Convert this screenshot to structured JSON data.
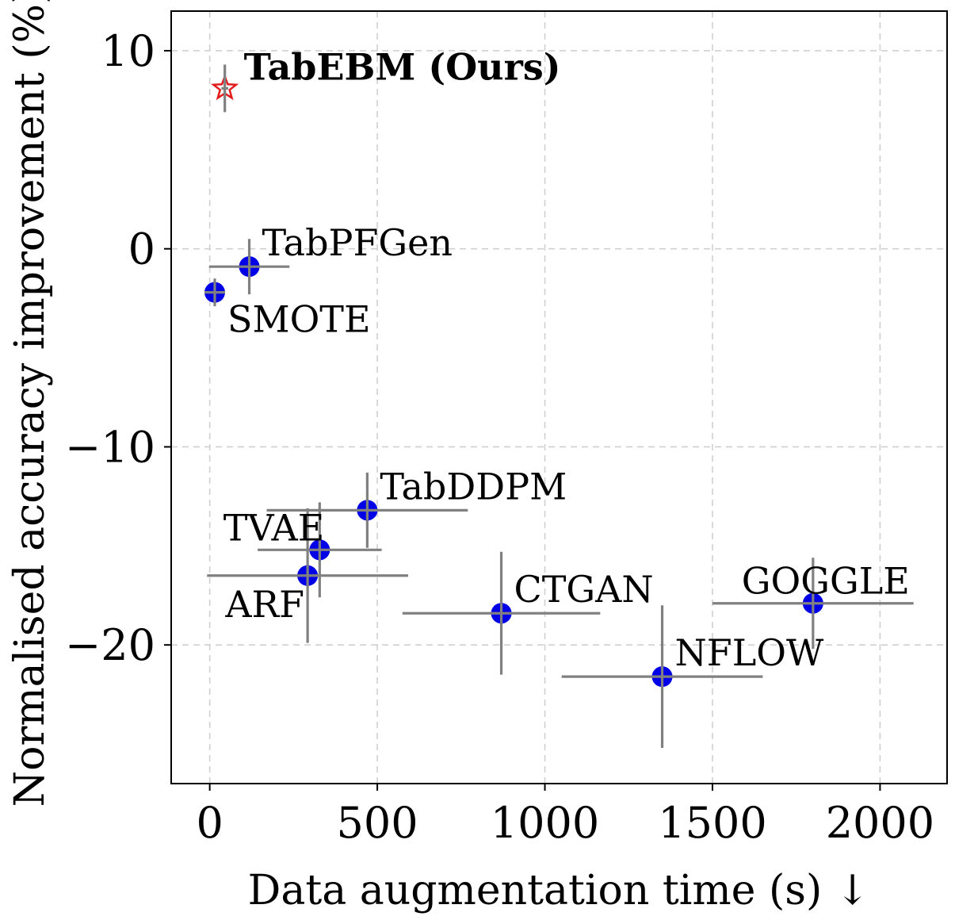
{
  "chart_data": {
    "type": "scatter",
    "title": "",
    "xlabel": "Data augmentation time (s) ↓",
    "ylabel": "Normalised accuracy improvement (%)",
    "xlim": [
      -115,
      2200
    ],
    "ylim": [
      -27,
      12
    ],
    "x_ticks": [
      0,
      500,
      1000,
      1500,
      2000
    ],
    "x_tick_labels": [
      "0",
      "500",
      "1000",
      "1500",
      "2000"
    ],
    "y_ticks": [
      10,
      0,
      -10,
      -20
    ],
    "y_tick_labels": [
      "10",
      "0",
      "−10",
      "−20"
    ],
    "grid": true,
    "points": [
      {
        "name": "TabEBM (Ours)",
        "x": 45,
        "y": 8.1,
        "xerr": [
          10,
          10
        ],
        "yerr": [
          1.2,
          1.2
        ],
        "marker": "star",
        "color": "#e31a1c",
        "bold": true,
        "label_pos": "upper-right"
      },
      {
        "name": "TabPFGen",
        "x": 118,
        "y": -0.9,
        "xerr": [
          120,
          120
        ],
        "yerr": [
          1.4,
          1.4
        ],
        "marker": "circle",
        "color": "#0000e6",
        "bold": false,
        "label_pos": "upper-right"
      },
      {
        "name": "SMOTE",
        "x": 15,
        "y": -2.2,
        "xerr": [
          5,
          5
        ],
        "yerr": [
          0.7,
          0.7
        ],
        "marker": "circle",
        "color": "#0000e6",
        "bold": false,
        "label_pos": "lower-right"
      },
      {
        "name": "TabDDPM",
        "x": 470,
        "y": -13.2,
        "xerr": [
          300,
          300
        ],
        "yerr": [
          1.9,
          1.9
        ],
        "marker": "circle",
        "color": "#0000e6",
        "bold": false,
        "label_pos": "upper-right"
      },
      {
        "name": "TVAE",
        "x": 328,
        "y": -15.2,
        "xerr": [
          185,
          185
        ],
        "yerr": [
          2.4,
          2.4
        ],
        "marker": "circle",
        "color": "#0000e6",
        "bold": false,
        "label_pos": "upper-left"
      },
      {
        "name": "ARF",
        "x": 292,
        "y": -16.5,
        "xerr": [
          300,
          300
        ],
        "yerr": [
          3.4,
          3.4
        ],
        "marker": "circle",
        "color": "#0000e6",
        "bold": false,
        "label_pos": "lower-left"
      },
      {
        "name": "CTGAN",
        "x": 870,
        "y": -18.4,
        "xerr": [
          295,
          295
        ],
        "yerr": [
          3.1,
          3.1
        ],
        "marker": "circle",
        "color": "#0000e6",
        "bold": false,
        "label_pos": "upper-right"
      },
      {
        "name": "NFLOW",
        "x": 1350,
        "y": -21.6,
        "xerr": [
          300,
          300
        ],
        "yerr": [
          3.6,
          3.6
        ],
        "marker": "circle",
        "color": "#0000e6",
        "bold": false,
        "label_pos": "upper-right"
      },
      {
        "name": "GOGGLE",
        "x": 1800,
        "y": -17.9,
        "xerr": [
          300,
          300
        ],
        "yerr": [
          2.3,
          2.3
        ],
        "marker": "circle",
        "color": "#0000e6",
        "bold": false,
        "label_pos": "upper-left"
      }
    ]
  },
  "colors": {
    "error_bar": "#808080",
    "grid": "#d0d0d0"
  }
}
